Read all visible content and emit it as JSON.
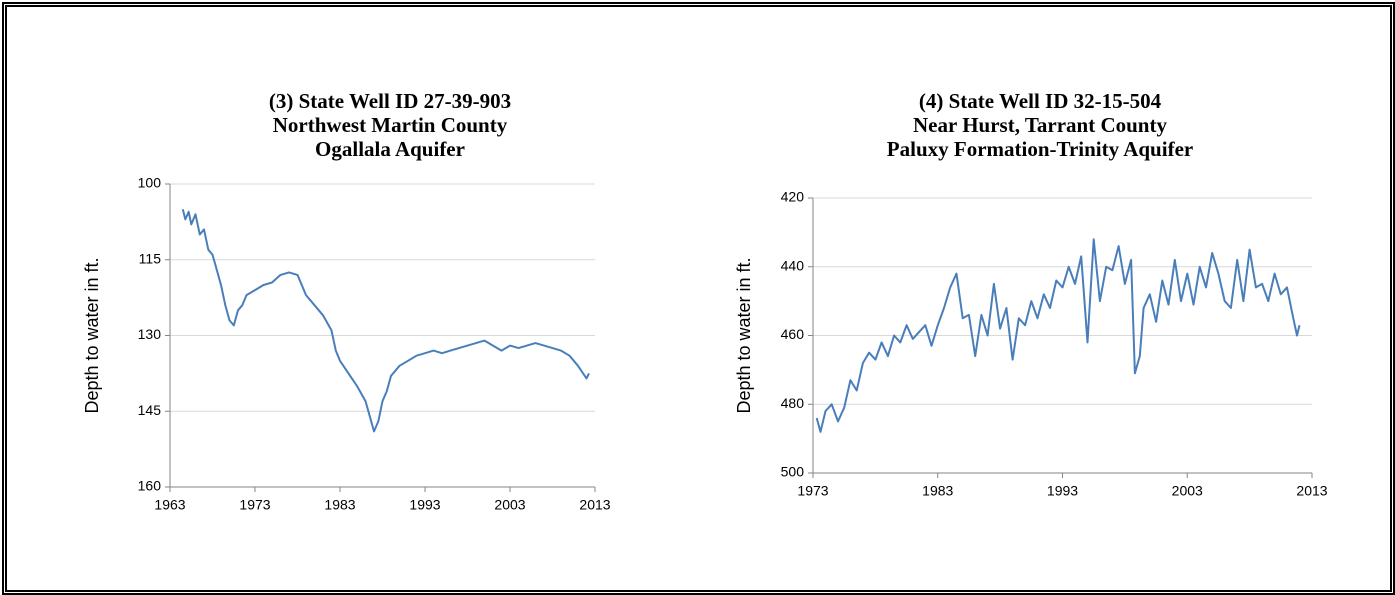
{
  "chart_data": [
    {
      "type": "line",
      "title": [
        "(3) State Well ID 27-39-903",
        "Northwest Martin County",
        "Ogallala Aquifer"
      ],
      "y_label": "Depth to water in ft.",
      "xlim": [
        1963,
        2013
      ],
      "xticks": [
        1963,
        1973,
        1983,
        1993,
        2003,
        2013
      ],
      "ylim": [
        100,
        160
      ],
      "yticks": [
        100,
        115,
        130,
        145,
        160
      ],
      "y_reversed": true,
      "grid": true,
      "series": [
        {
          "name": "Depth",
          "color": "#4a7ebb",
          "x": [
            1964.5,
            1964.8,
            1965.2,
            1965.5,
            1966,
            1966.5,
            1967,
            1967.5,
            1968,
            1968.5,
            1969,
            1969.5,
            1970,
            1970.5,
            1971,
            1971.5,
            1972,
            1973,
            1974,
            1975,
            1976,
            1977,
            1978,
            1979,
            1980,
            1981,
            1982,
            1982.5,
            1983,
            1984,
            1985,
            1986,
            1986.5,
            1987,
            1987.5,
            1988,
            1988.5,
            1989,
            1990,
            1991,
            1992,
            1993,
            1994,
            1995,
            1996,
            1997,
            1998,
            1999,
            2000,
            2001,
            2002,
            2003,
            2004,
            2005,
            2006,
            2007,
            2008,
            2009,
            2010,
            2011,
            2012,
            2012.3
          ],
          "values": [
            105,
            107,
            105.5,
            108,
            106,
            110,
            109,
            113,
            114,
            117,
            120,
            124,
            127,
            128,
            125,
            124,
            122,
            121,
            120,
            119.5,
            118,
            117.5,
            118,
            122,
            124,
            126,
            129,
            133,
            135,
            137.5,
            140,
            143,
            146,
            149,
            147,
            143,
            141,
            138,
            136,
            135,
            134,
            133.5,
            133,
            133.5,
            133,
            132.5,
            132,
            131.5,
            131,
            132,
            133,
            132,
            132.5,
            132,
            131.5,
            132,
            132.5,
            133,
            134,
            136,
            138.5,
            137.5
          ]
        }
      ]
    },
    {
      "type": "line",
      "title": [
        "(4) State Well ID 32-15-504",
        "Near Hurst, Tarrant County",
        "Paluxy Formation-Trinity Aquifer"
      ],
      "y_label": "Depth to water in ft.",
      "xlim": [
        1973,
        2013
      ],
      "xticks": [
        1973,
        1983,
        1993,
        2003,
        2013
      ],
      "ylim": [
        420,
        500
      ],
      "yticks": [
        420,
        440,
        460,
        480,
        500
      ],
      "y_reversed": true,
      "grid": true,
      "series": [
        {
          "name": "Depth",
          "color": "#4a7ebb",
          "x": [
            1973.3,
            1973.6,
            1974,
            1974.5,
            1975,
            1975.5,
            1976,
            1976.5,
            1977,
            1977.5,
            1978,
            1978.5,
            1979,
            1979.5,
            1980,
            1980.5,
            1981,
            1981.5,
            1982,
            1982.5,
            1983,
            1983.5,
            1984,
            1984.5,
            1985,
            1985.5,
            1986,
            1986.5,
            1987,
            1987.5,
            1988,
            1988.5,
            1989,
            1989.5,
            1990,
            1990.5,
            1991,
            1991.5,
            1992,
            1992.5,
            1993,
            1993.5,
            1994,
            1994.5,
            1995,
            1995.5,
            1996,
            1996.5,
            1997,
            1997.5,
            1998,
            1998.5,
            1998.8,
            1999.2,
            1999.5,
            2000,
            2000.5,
            2001,
            2001.5,
            2002,
            2002.5,
            2003,
            2003.5,
            2004,
            2004.5,
            2005,
            2005.5,
            2006,
            2006.5,
            2007,
            2007.5,
            2008,
            2008.5,
            2009,
            2009.5,
            2010,
            2010.5,
            2011,
            2011.5,
            2011.8,
            2012
          ],
          "values": [
            484,
            488,
            482,
            480,
            485,
            481,
            473,
            476,
            468,
            465,
            467,
            462,
            466,
            460,
            462,
            457,
            461,
            459,
            457,
            463,
            457,
            452,
            446,
            442,
            455,
            454,
            466,
            454,
            460,
            445,
            458,
            452,
            467,
            455,
            457,
            450,
            455,
            448,
            452,
            444,
            446,
            440,
            445,
            437,
            462,
            432,
            450,
            440,
            441,
            434,
            445,
            438,
            471,
            466,
            452,
            448,
            456,
            444,
            451,
            438,
            450,
            442,
            451,
            440,
            446,
            436,
            442,
            450,
            452,
            438,
            450,
            435,
            446,
            445,
            450,
            442,
            448,
            446,
            455,
            460,
            457
          ]
        }
      ]
    }
  ]
}
